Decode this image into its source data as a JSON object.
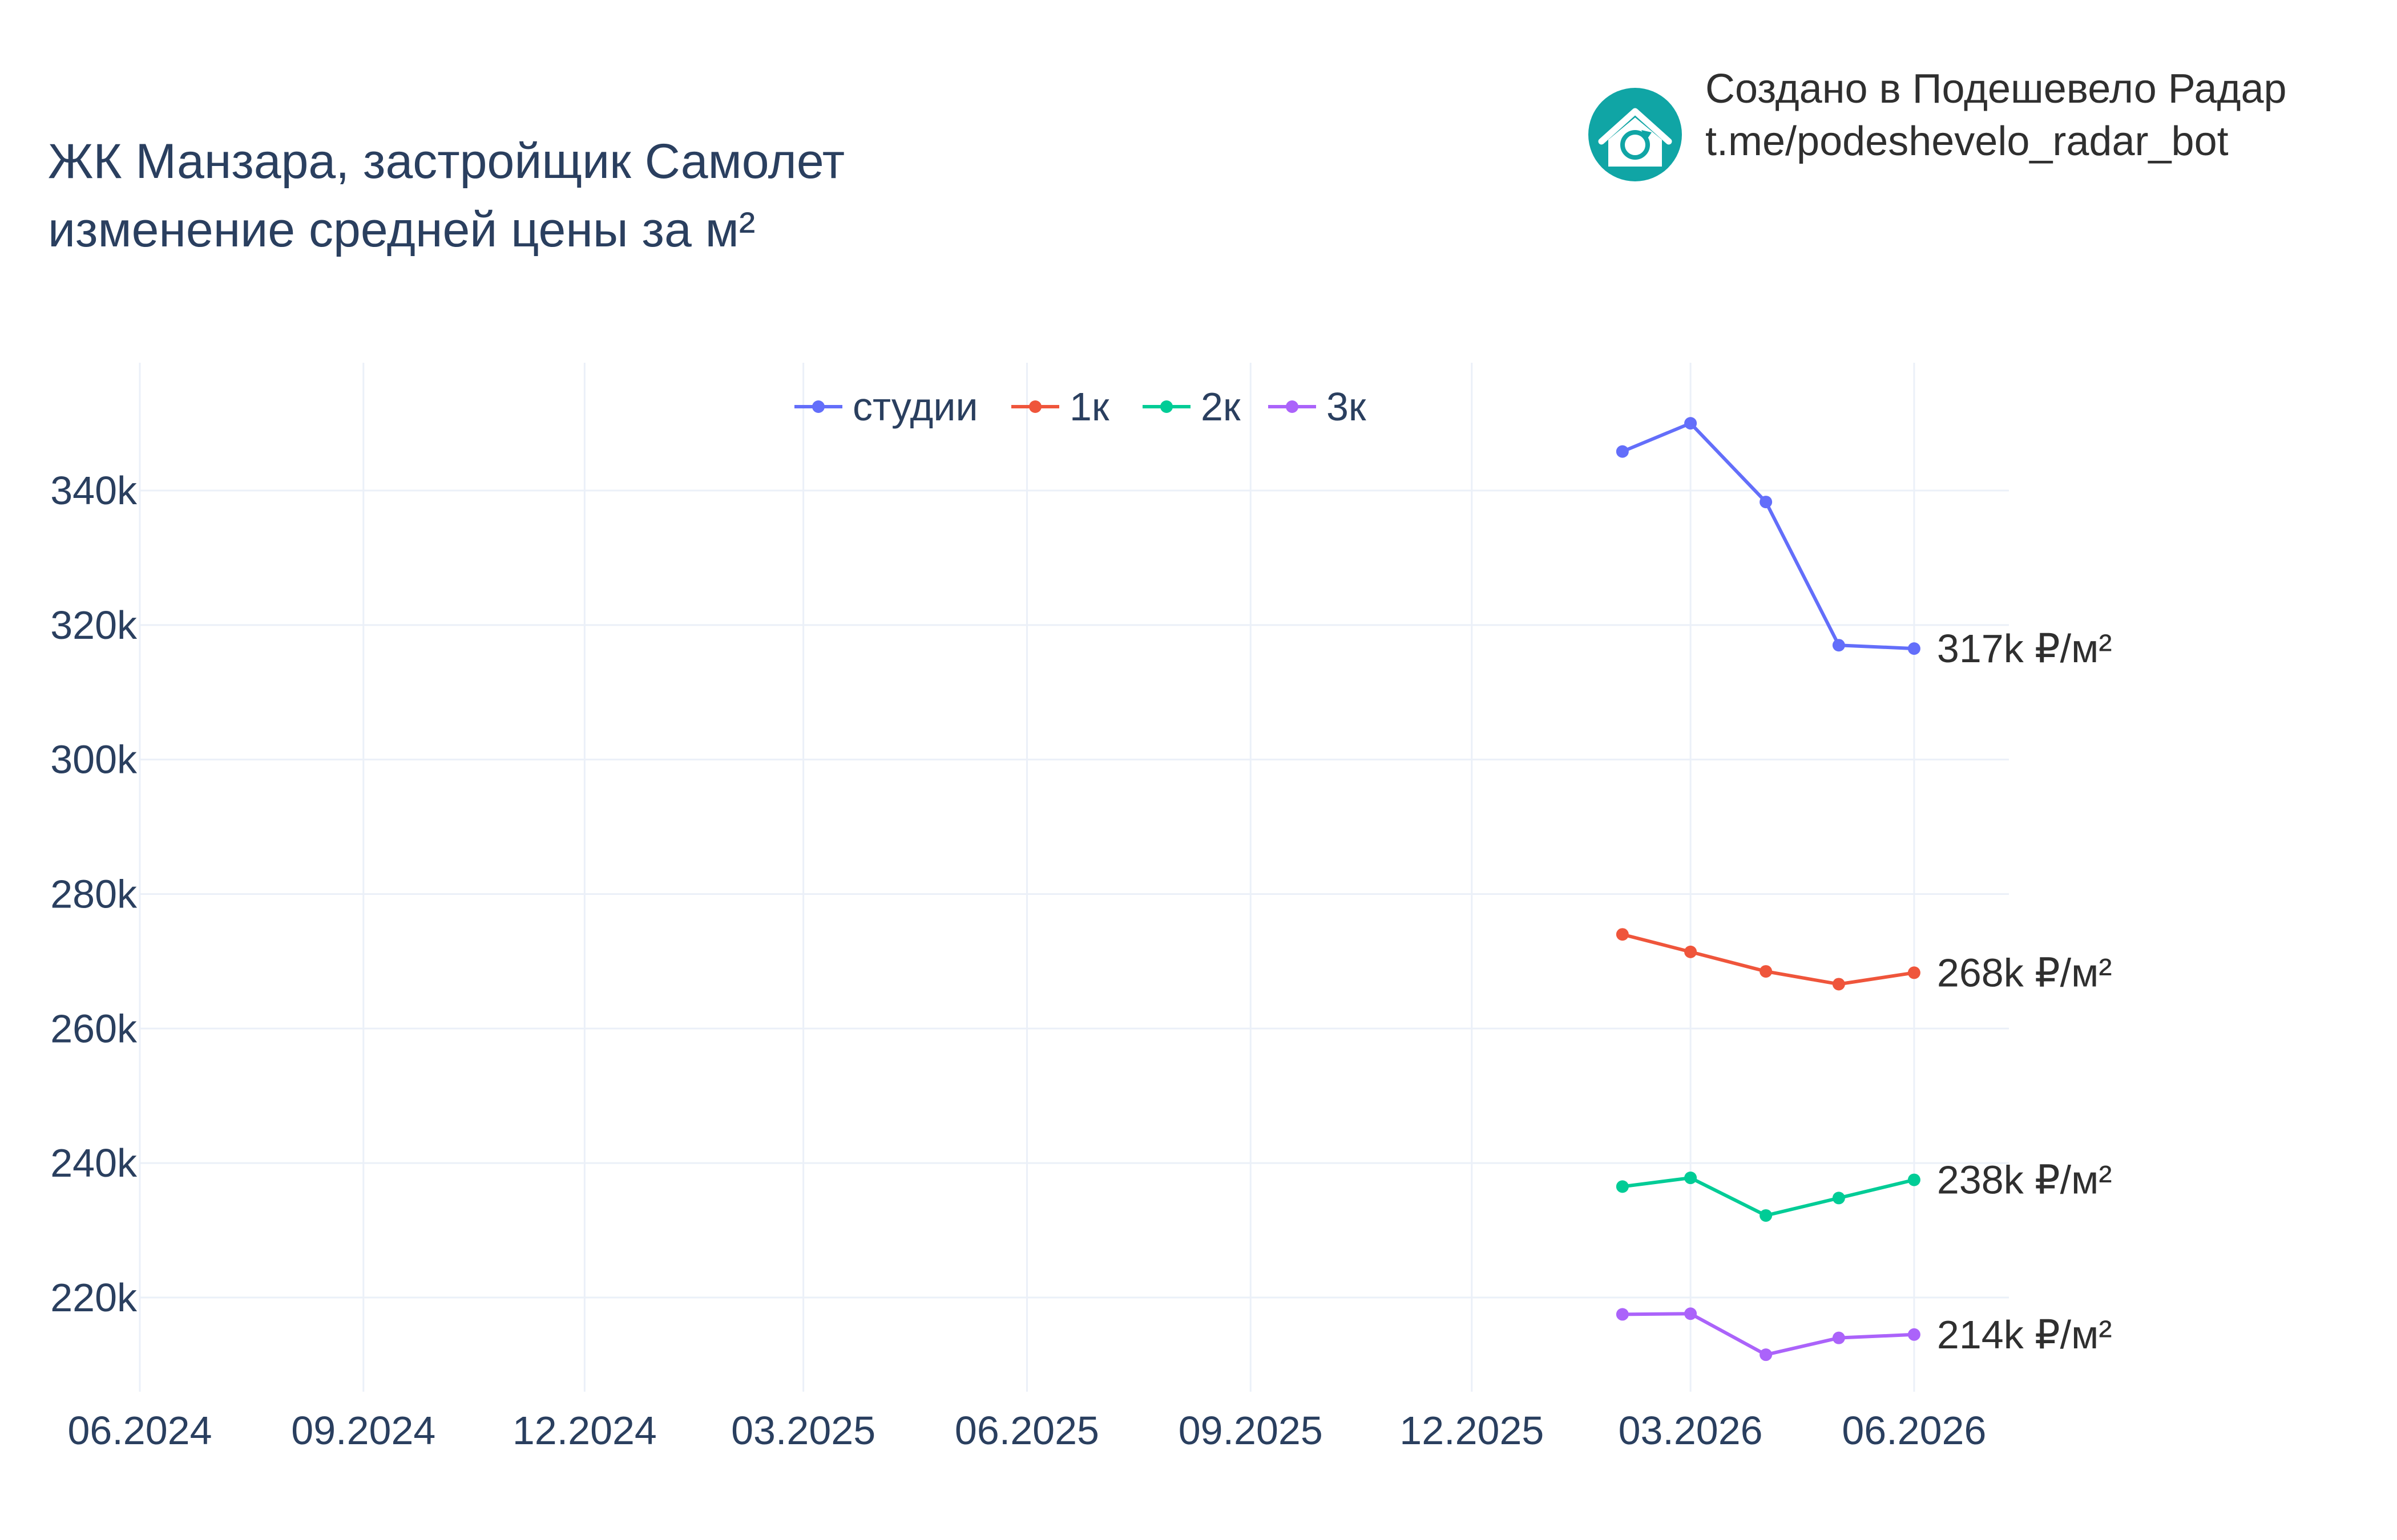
{
  "header": {
    "title_line1": "ЖК Манзара, застройщик Самолет",
    "title_line2": "изменение средней цены за м²"
  },
  "credit": {
    "line1": "Создано в Подешевело Радар",
    "line2": "t.me/podeshevelo_radar_bot",
    "logo_icon": "house-refresh-icon",
    "logo_color": "#10a5a5"
  },
  "chart_data": {
    "type": "line",
    "x_ticks": [
      "06.2024",
      "09.2024",
      "12.2024",
      "03.2025",
      "06.2025",
      "09.2025",
      "12.2025",
      "03.2026",
      "06.2026"
    ],
    "y_ticks": [
      220000,
      240000,
      260000,
      280000,
      300000,
      320000,
      340000
    ],
    "y_tick_labels": [
      "220k",
      "240k",
      "260k",
      "280k",
      "300k",
      "320k",
      "340k"
    ],
    "xlim": [
      "2024-06-01",
      "2026-07-10"
    ],
    "ylim": [
      206000,
      359000
    ],
    "grid": true,
    "legend_position": "top-center",
    "x": [
      "2026-02-01",
      "2026-03-01",
      "2026-04-01",
      "2026-05-01",
      "2026-06-01"
    ],
    "series": [
      {
        "name": "студии",
        "color": "#636efa",
        "values": [
          345800,
          350000,
          338300,
          317000,
          316500
        ],
        "end_label": "317k ₽/м²"
      },
      {
        "name": "1к",
        "color": "#ef553b",
        "values": [
          274000,
          271400,
          268500,
          266600,
          268300
        ],
        "end_label": "268k ₽/м²"
      },
      {
        "name": "2к",
        "color": "#00cc96",
        "values": [
          236500,
          237800,
          232200,
          234800,
          237500
        ],
        "end_label": "238k ₽/м²"
      },
      {
        "name": "3к",
        "color": "#ab63fa",
        "values": [
          217500,
          217600,
          211500,
          214000,
          214500
        ],
        "end_label": "214k ₽/м²"
      }
    ]
  }
}
